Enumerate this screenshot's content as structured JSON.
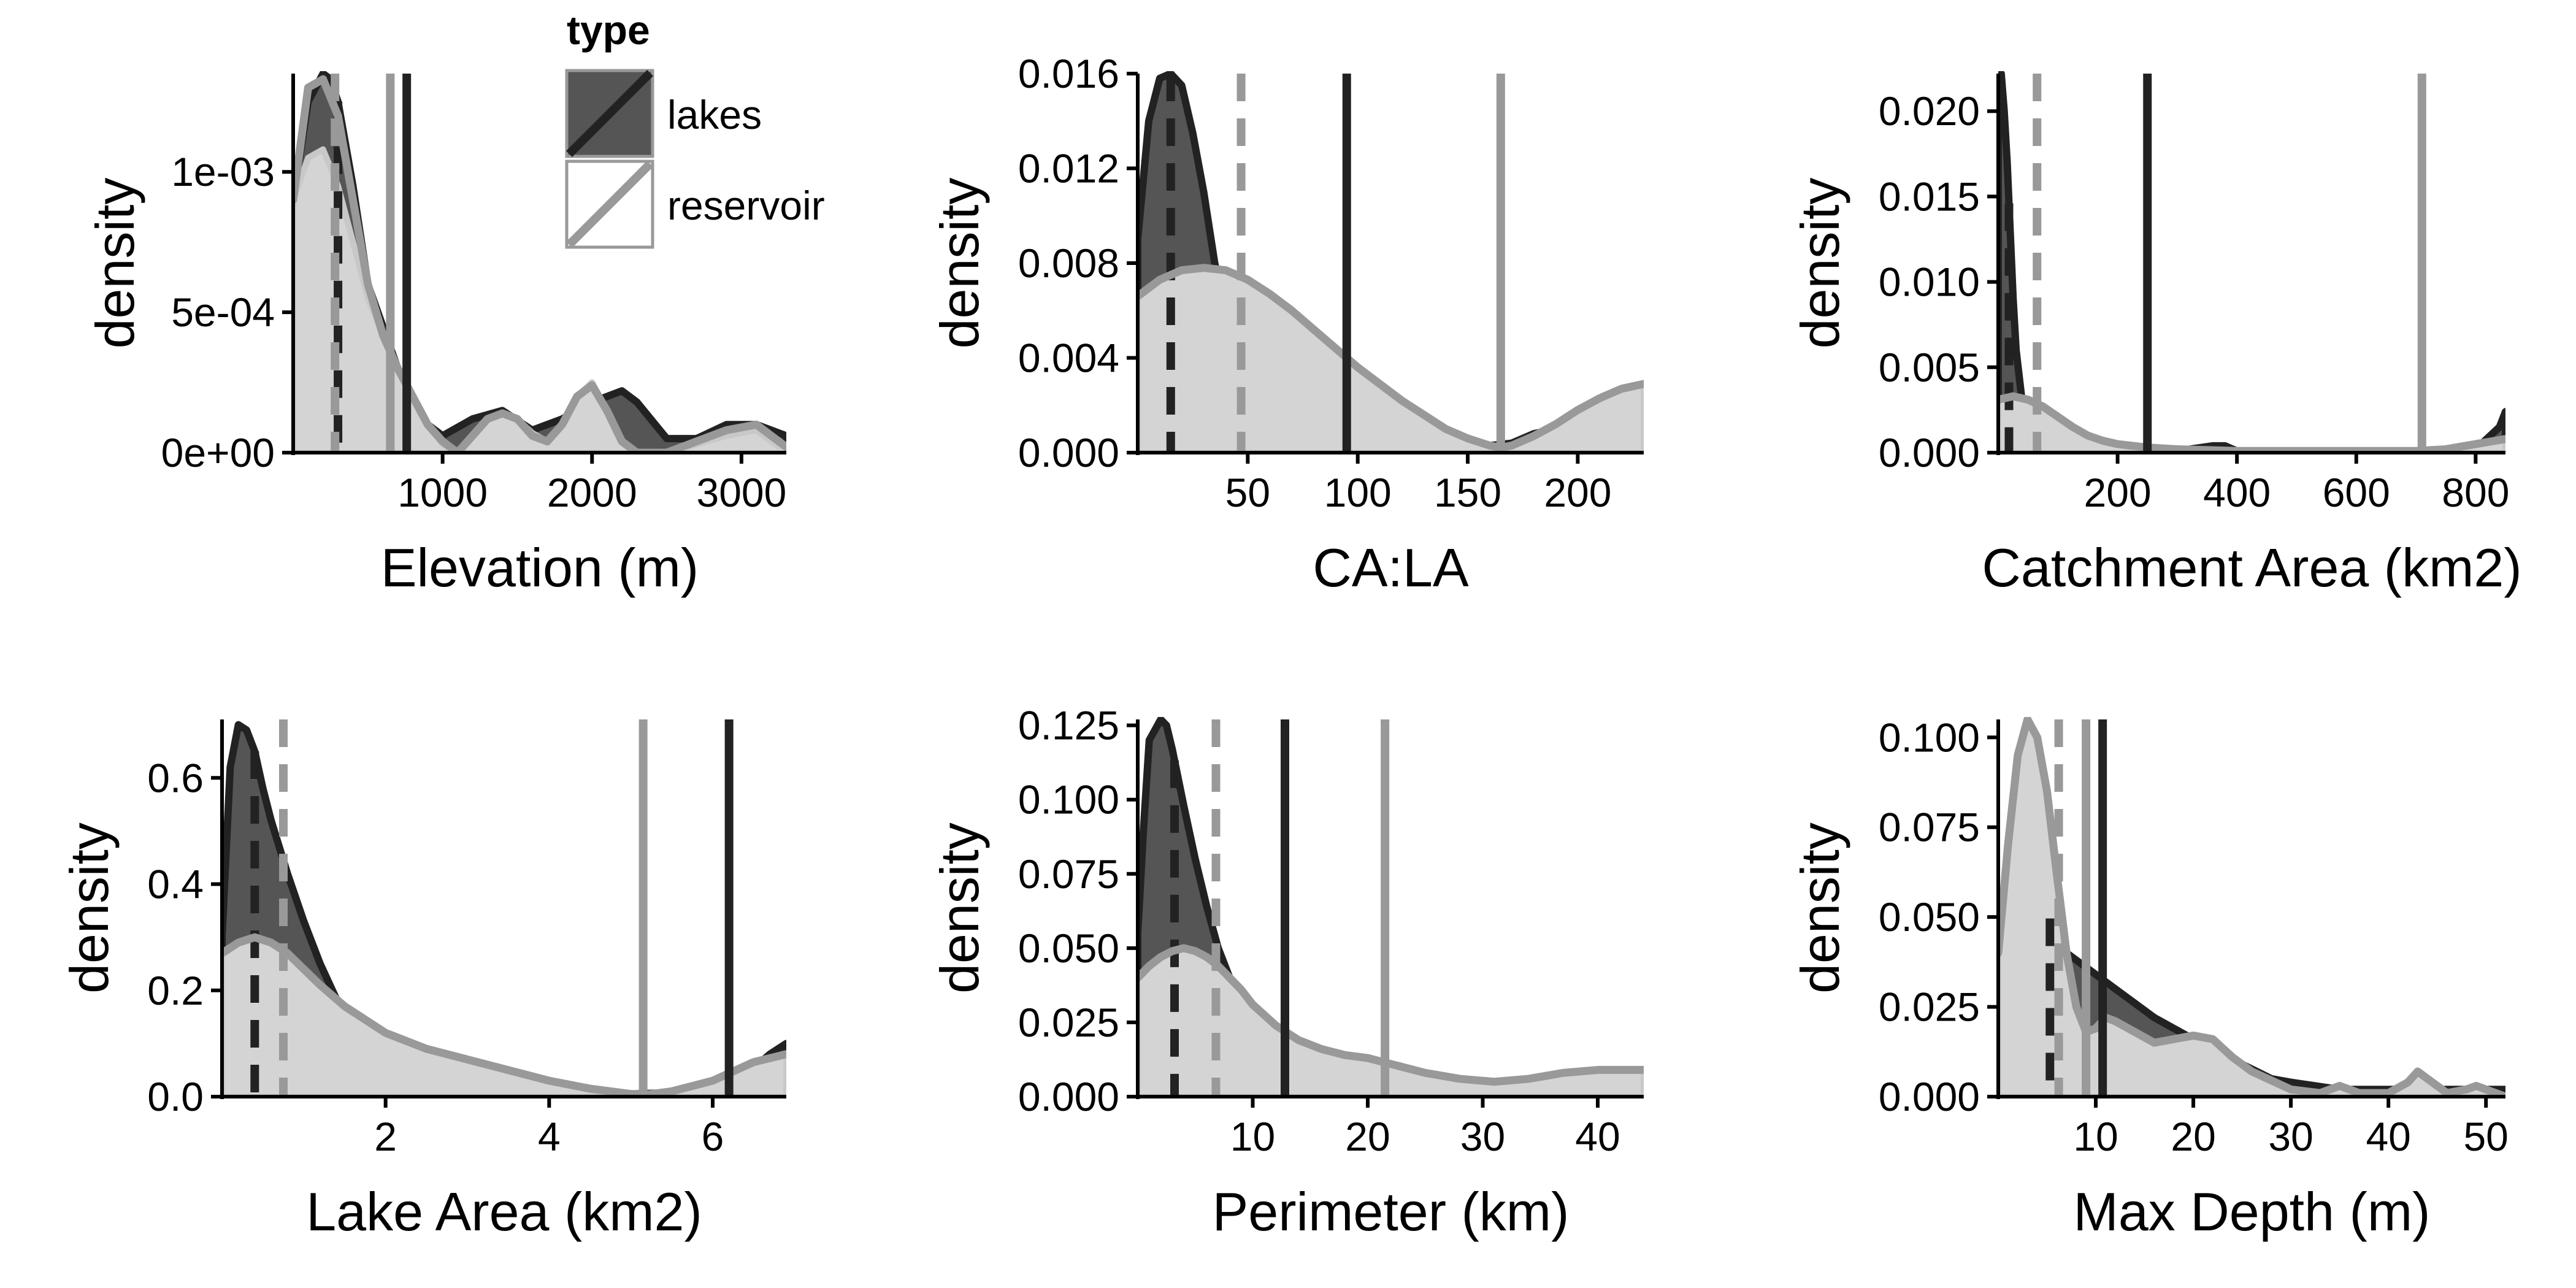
{
  "legend": {
    "title": "type",
    "items": [
      {
        "label": "lakes",
        "fill": "#555555",
        "line": "#222222"
      },
      {
        "label": "reservoir",
        "fill": "#ffffff",
        "line": "#999999"
      }
    ]
  },
  "colors": {
    "lakes_fill": "#555555",
    "lakes_line": "#222222",
    "reservoir_fill": "#d4d4d4",
    "reservoir_line": "#999999",
    "axis": "#000000"
  },
  "chart_data": [
    {
      "type": "area",
      "xlabel": "Elevation (m)",
      "ylabel": "density",
      "xlim": [
        0,
        3300
      ],
      "ylim": [
        0,
        0.00135
      ],
      "xticks": [
        1000,
        2000,
        3000
      ],
      "xtick_labels": [
        "1000",
        "2000",
        "3000"
      ],
      "yticks": [
        0,
        0.0005,
        0.001
      ],
      "ytick_labels": [
        "0e+00",
        "5e-04",
        "1e-03"
      ],
      "series": [
        {
          "name": "lakes",
          "x": [
            0,
            100,
            200,
            250,
            300,
            400,
            500,
            600,
            700,
            800,
            900,
            1000,
            1200,
            1400,
            1600,
            1800,
            2000,
            2200,
            2300,
            2500,
            2700,
            2900,
            3100,
            3300
          ],
          "density": [
            0.0009,
            0.00125,
            0.00135,
            0.00133,
            0.00125,
            0.00095,
            0.0006,
            0.00045,
            0.0003,
            0.00018,
            0.0001,
            6e-05,
            0.00012,
            0.00015,
            8e-05,
            0.00012,
            0.00018,
            0.00022,
            0.00018,
            5e-05,
            5e-05,
            0.0001,
            0.0001,
            6e-05
          ],
          "mean": 760,
          "median": 300
        },
        {
          "name": "reservoir",
          "x": [
            0,
            100,
            200,
            300,
            400,
            500,
            600,
            700,
            800,
            900,
            1000,
            1100,
            1200,
            1300,
            1400,
            1500,
            1600,
            1700,
            1800,
            1900,
            2000,
            2100,
            2200,
            2300,
            2500,
            2700,
            2900,
            3100,
            3300
          ],
          "density": [
            0.0009,
            0.00105,
            0.00108,
            0.00095,
            0.00075,
            0.00055,
            0.00042,
            0.0003,
            0.0002,
            0.0001,
            3e-05,
            0.0,
            6e-05,
            0.00012,
            0.00014,
            0.00012,
            7e-05,
            4e-05,
            0.0001,
            0.0002,
            0.00025,
            0.00015,
            4e-05,
            0.0,
            0.0,
            3e-05,
            6e-05,
            8e-05,
            0.0
          ],
          "mean": 650,
          "median": 280,
          "mean_curve": [
            0.0009,
            0.0013,
            0.00133,
            0.0012,
            0.0009,
            0.0006,
            0.00042,
            0.0003,
            0.0002,
            0.0001,
            4e-05,
            0.0,
            6e-05,
            0.00012,
            0.00014,
            0.00012,
            6e-05,
            4e-05,
            0.0001,
            0.0002,
            0.00024,
            0.00015,
            4e-05,
            0.0,
            0.0,
            4e-05,
            8e-05,
            0.0001,
            2e-05
          ]
        }
      ]
    },
    {
      "type": "area",
      "xlabel": "CA:LA",
      "ylabel": "density",
      "xlim": [
        0,
        230
      ],
      "ylim": [
        0,
        0.016
      ],
      "xticks": [
        50,
        100,
        150,
        200
      ],
      "xtick_labels": [
        "50",
        "100",
        "150",
        "200"
      ],
      "yticks": [
        0,
        0.004,
        0.008,
        0.012,
        0.016
      ],
      "ytick_labels": [
        "0.000",
        "0.004",
        "0.008",
        "0.012",
        "0.016"
      ],
      "series": [
        {
          "name": "lakes",
          "x": [
            0,
            5,
            10,
            15,
            20,
            25,
            30,
            35,
            40,
            45,
            50,
            60,
            70,
            80,
            90,
            100,
            120,
            140,
            160,
            170,
            180,
            200,
            220,
            230
          ],
          "density": [
            0.009,
            0.014,
            0.0158,
            0.016,
            0.0155,
            0.0135,
            0.011,
            0.008,
            0.006,
            0.004,
            0.0027,
            0.0015,
            0.0009,
            0.0007,
            0.0006,
            0.0005,
            0.0004,
            0.0003,
            0.0003,
            0.0004,
            0.0008,
            0.0012,
            0.0016,
            0.0018
          ],
          "mean": 95,
          "median": 15
        },
        {
          "name": "reservoir",
          "x": [
            0,
            10,
            20,
            30,
            40,
            50,
            60,
            70,
            80,
            90,
            100,
            110,
            120,
            130,
            140,
            150,
            160,
            165,
            170,
            180,
            190,
            200,
            210,
            220,
            230
          ],
          "density": [
            0.0066,
            0.0073,
            0.0077,
            0.0078,
            0.0077,
            0.0073,
            0.0067,
            0.006,
            0.0052,
            0.0044,
            0.0036,
            0.0029,
            0.0022,
            0.0016,
            0.001,
            0.0006,
            0.0003,
            0.0002,
            0.0003,
            0.0007,
            0.0012,
            0.0018,
            0.0023,
            0.0027,
            0.0029
          ],
          "mean": 165,
          "median": 47
        }
      ]
    },
    {
      "type": "area",
      "xlabel": "Catchment Area (km2)",
      "ylabel": "density",
      "xlim": [
        0,
        850
      ],
      "ylim": [
        0,
        0.0222
      ],
      "xticks": [
        200,
        400,
        600,
        800
      ],
      "xtick_labels": [
        "200",
        "400",
        "600",
        "800"
      ],
      "yticks": [
        0,
        0.005,
        0.01,
        0.015,
        0.02
      ],
      "ytick_labels": [
        "0.000",
        "0.005",
        "0.010",
        "0.015",
        "0.020"
      ],
      "series": [
        {
          "name": "lakes",
          "x": [
            0,
            5,
            10,
            15,
            20,
            25,
            30,
            40,
            50,
            60,
            80,
            100,
            150,
            200,
            300,
            360,
            380,
            400,
            500,
            600,
            700,
            800,
            840,
            850
          ],
          "density": [
            0.022,
            0.0222,
            0.02,
            0.017,
            0.013,
            0.009,
            0.006,
            0.003,
            0.0016,
            0.0009,
            0.0005,
            0.0003,
            0.0002,
            0.0002,
            0.0001,
            0.0004,
            0.0004,
            0.0001,
            0.0001,
            0.0001,
            0.0001,
            0.0002,
            0.0015,
            0.0024
          ],
          "mean": 250,
          "median": 18
        },
        {
          "name": "reservoir",
          "x": [
            0,
            25,
            50,
            75,
            100,
            125,
            150,
            175,
            200,
            250,
            300,
            400,
            500,
            600,
            700,
            750,
            800,
            850
          ],
          "density": [
            0.0031,
            0.0033,
            0.0031,
            0.0027,
            0.0021,
            0.0015,
            0.001,
            0.0007,
            0.0005,
            0.0003,
            0.0002,
            0.0001,
            0.0001,
            0.0001,
            0.0001,
            0.0002,
            0.0005,
            0.0008
          ],
          "mean": 710,
          "median": 65
        }
      ]
    },
    {
      "type": "area",
      "xlabel": "Lake Area (km2)",
      "ylabel": "density",
      "xlim": [
        0,
        6.9
      ],
      "ylim": [
        0,
        0.71
      ],
      "xticks": [
        2,
        4,
        6
      ],
      "xtick_labels": [
        "2",
        "4",
        "6"
      ],
      "yticks": [
        0,
        0.2,
        0.4,
        0.6
      ],
      "ytick_labels": [
        "0.0",
        "0.2",
        "0.4",
        "0.6"
      ],
      "series": [
        {
          "name": "lakes",
          "x": [
            0,
            0.1,
            0.2,
            0.3,
            0.4,
            0.5,
            0.6,
            0.8,
            1.0,
            1.2,
            1.5,
            2.0,
            2.5,
            3.0,
            4.0,
            5.0,
            6.0,
            6.4,
            6.7,
            6.9
          ],
          "density": [
            0.3,
            0.62,
            0.7,
            0.69,
            0.65,
            0.58,
            0.52,
            0.42,
            0.33,
            0.25,
            0.15,
            0.07,
            0.04,
            0.025,
            0.01,
            0.005,
            0.01,
            0.04,
            0.08,
            0.1
          ],
          "mean": 6.2,
          "median": 0.4
        },
        {
          "name": "reservoir",
          "x": [
            0,
            0.2,
            0.4,
            0.6,
            0.8,
            1.0,
            1.2,
            1.5,
            2.0,
            2.5,
            3.0,
            3.5,
            4.0,
            4.5,
            5.0,
            5.2,
            5.5,
            6.0,
            6.5,
            6.9
          ],
          "density": [
            0.27,
            0.29,
            0.3,
            0.29,
            0.27,
            0.24,
            0.21,
            0.17,
            0.12,
            0.09,
            0.07,
            0.05,
            0.03,
            0.015,
            0.005,
            0.004,
            0.01,
            0.03,
            0.065,
            0.08
          ],
          "mean": 5.15,
          "median": 0.75
        }
      ]
    },
    {
      "type": "area",
      "xlabel": "Perimeter (km)",
      "ylabel": "density",
      "xlim": [
        0,
        44
      ],
      "ylim": [
        0,
        0.127
      ],
      "xticks": [
        10,
        20,
        30,
        40
      ],
      "xtick_labels": [
        "10",
        "20",
        "30",
        "40"
      ],
      "yticks": [
        0,
        0.025,
        0.05,
        0.075,
        0.1,
        0.125
      ],
      "ytick_labels": [
        "0.000",
        "0.025",
        "0.050",
        "0.075",
        "0.100",
        "0.125"
      ],
      "series": [
        {
          "name": "lakes",
          "x": [
            0,
            0.5,
            1,
            2,
            2.5,
            3,
            4,
            5,
            6,
            7,
            8,
            9,
            10,
            12,
            14,
            16,
            18,
            20,
            25,
            30,
            35,
            40,
            44
          ],
          "density": [
            0.055,
            0.09,
            0.12,
            0.127,
            0.125,
            0.117,
            0.098,
            0.08,
            0.064,
            0.05,
            0.04,
            0.032,
            0.025,
            0.015,
            0.009,
            0.006,
            0.004,
            0.003,
            0.002,
            0.002,
            0.003,
            0.005,
            0.008
          ],
          "mean": 12.8,
          "median": 3.2
        },
        {
          "name": "reservoir",
          "x": [
            0,
            1,
            2,
            3,
            4,
            5,
            6,
            7,
            8,
            9,
            10,
            12,
            14,
            16,
            18,
            20,
            22,
            25,
            28,
            31,
            34,
            37,
            40,
            44
          ],
          "density": [
            0.04,
            0.044,
            0.047,
            0.049,
            0.05,
            0.049,
            0.047,
            0.044,
            0.04,
            0.036,
            0.031,
            0.024,
            0.019,
            0.016,
            0.014,
            0.013,
            0.011,
            0.008,
            0.006,
            0.005,
            0.006,
            0.008,
            0.009,
            0.009
          ],
          "mean": 21.5,
          "median": 6.8
        }
      ]
    },
    {
      "type": "area",
      "xlabel": "Max Depth (m)",
      "ylabel": "density",
      "xlim": [
        0,
        52
      ],
      "ylim": [
        0,
        0.105
      ],
      "xticks": [
        10,
        20,
        30,
        40,
        50
      ],
      "xtick_labels": [
        "10",
        "20",
        "30",
        "40",
        "50"
      ],
      "yticks": [
        0,
        0.025,
        0.05,
        0.075,
        0.1
      ],
      "ytick_labels": [
        "0.000",
        "0.025",
        "0.050",
        "0.075",
        "0.100"
      ],
      "series": [
        {
          "name": "lakes",
          "x": [
            0,
            1,
            2,
            3,
            4,
            5,
            6,
            7,
            8,
            9,
            10,
            12,
            14,
            16,
            18,
            20,
            22,
            25,
            28,
            30,
            35,
            40,
            45,
            50,
            52
          ],
          "density": [
            0.05,
            0.064,
            0.07,
            0.067,
            0.06,
            0.052,
            0.044,
            0.04,
            0.038,
            0.036,
            0.034,
            0.03,
            0.026,
            0.022,
            0.019,
            0.016,
            0.013,
            0.009,
            0.005,
            0.004,
            0.002,
            0.002,
            0.002,
            0.002,
            0.002
          ],
          "mean": 10.7,
          "median": 5.3
        },
        {
          "name": "reservoir",
          "x": [
            0,
            1,
            2,
            3,
            4,
            5,
            6,
            7,
            8,
            9,
            10,
            11,
            12,
            14,
            16,
            18,
            20,
            22,
            24,
            26,
            30,
            33,
            35,
            37,
            40,
            42,
            43,
            44,
            46,
            48,
            49,
            50,
            52
          ],
          "density": [
            0.04,
            0.07,
            0.095,
            0.105,
            0.1,
            0.085,
            0.062,
            0.04,
            0.025,
            0.018,
            0.019,
            0.022,
            0.021,
            0.018,
            0.015,
            0.016,
            0.017,
            0.016,
            0.011,
            0.007,
            0.002,
            0.001,
            0.003,
            0.001,
            0.001,
            0.004,
            0.007,
            0.005,
            0.001,
            0.002,
            0.003,
            0.002,
            0.0
          ],
          "mean": 9.0,
          "median": 6.2
        }
      ]
    }
  ]
}
